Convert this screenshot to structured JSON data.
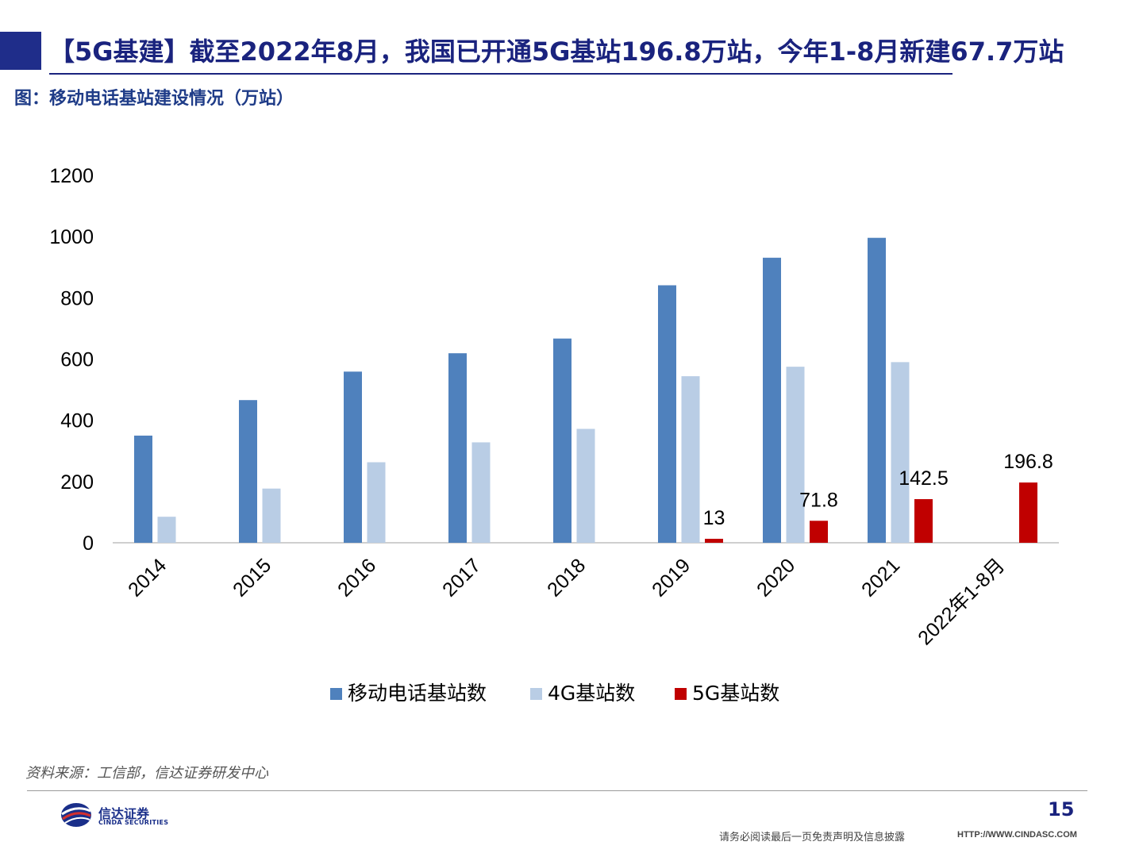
{
  "header": {
    "title": "【5G基建】截至2022年8月，我国已开通5G基站196.8万站，今年1-8月新建67.7万站",
    "subtitle": "图：移动电话基站建设情况（万站）"
  },
  "chart_data": {
    "type": "bar",
    "title": "",
    "xlabel": "",
    "ylabel": "",
    "ylim": [
      0,
      1200
    ],
    "yticks": [
      "0",
      "200",
      "400",
      "600",
      "800",
      "1000",
      "1200"
    ],
    "categories": [
      "2014",
      "2015",
      "2016",
      "2017",
      "2018",
      "2019",
      "2020",
      "2021",
      "2022年1-8月"
    ],
    "series": [
      {
        "name": "移动电话基站数",
        "color": "#4f81bd",
        "values": [
          350,
          466,
          559,
          619,
          667,
          841,
          931,
          996,
          null
        ]
      },
      {
        "name": "4G基站数",
        "color": "#b9cde5",
        "values": [
          85,
          177,
          263,
          328,
          372,
          544,
          575,
          590,
          null
        ]
      },
      {
        "name": "5G基站数",
        "color": "#c00000",
        "values": [
          null,
          null,
          null,
          null,
          null,
          13,
          71.8,
          142.5,
          196.8
        ],
        "data_labels": [
          "",
          "",
          "",
          "",
          "",
          "13",
          "71.8",
          "142.5",
          "196.8"
        ]
      }
    ],
    "grid": false,
    "legend_position": "bottom"
  },
  "footer": {
    "source": "资料来源：工信部，信达证券研发中心",
    "logo_cn": "信达证券",
    "logo_en": "CINDA SECURITIES",
    "page_number": "15",
    "disclaimer": "请务必阅读最后一页免责声明及信息披露",
    "url": "HTTP://WWW.CINDASC.COM"
  }
}
